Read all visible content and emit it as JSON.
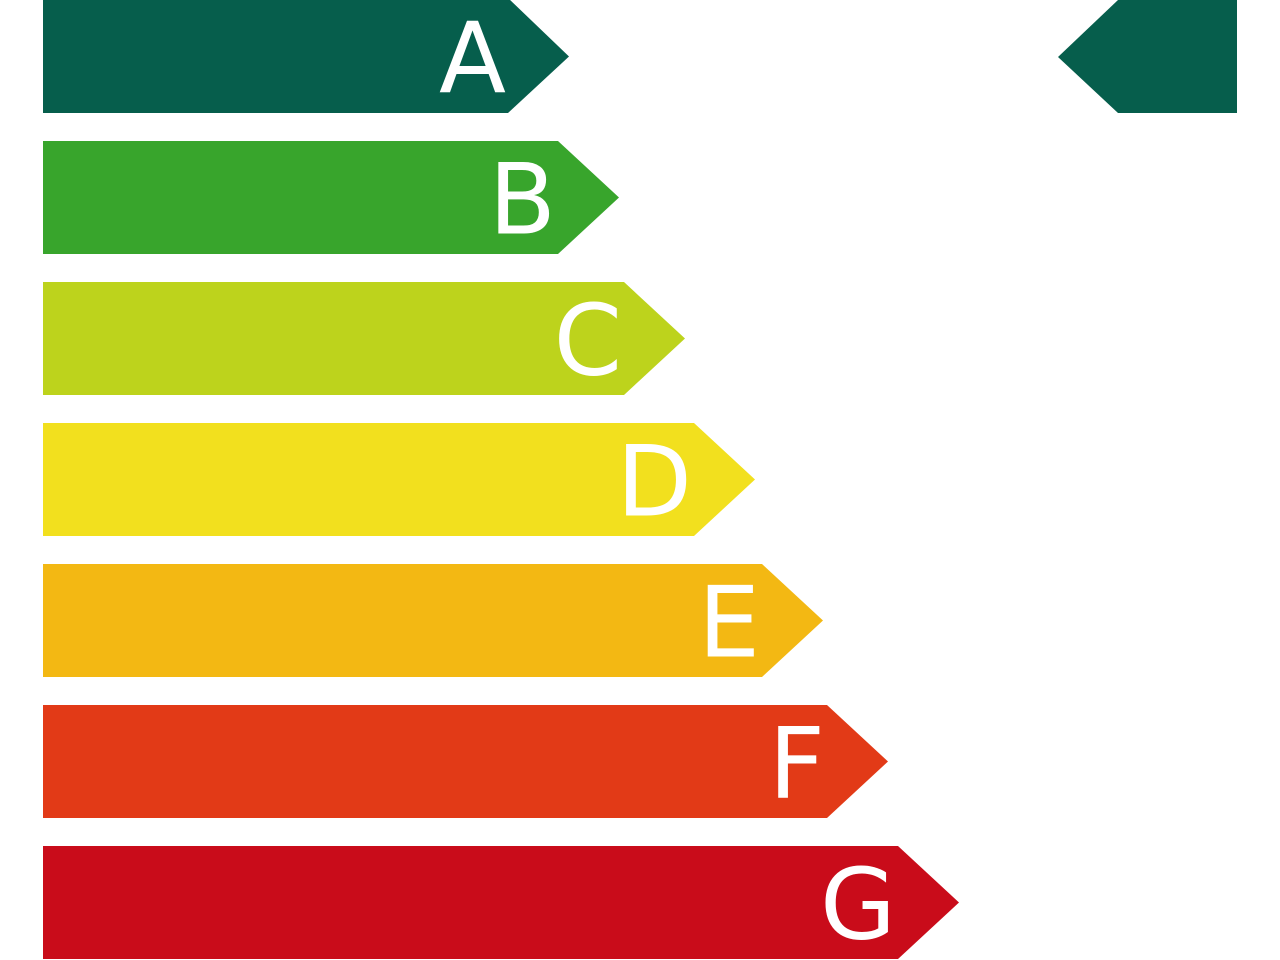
{
  "classes": [
    {
      "letter": "A",
      "color": "#065e4c"
    },
    {
      "letter": "B",
      "color": "#38a52c"
    },
    {
      "letter": "C",
      "color": "#bdd31c"
    },
    {
      "letter": "D",
      "color": "#f2e01e"
    },
    {
      "letter": "E",
      "color": "#f3b813"
    },
    {
      "letter": "F",
      "color": "#e23a17"
    },
    {
      "letter": "G",
      "color": "#c90c1a"
    }
  ],
  "indicator": {
    "class": "A",
    "color": "#065e4c"
  }
}
